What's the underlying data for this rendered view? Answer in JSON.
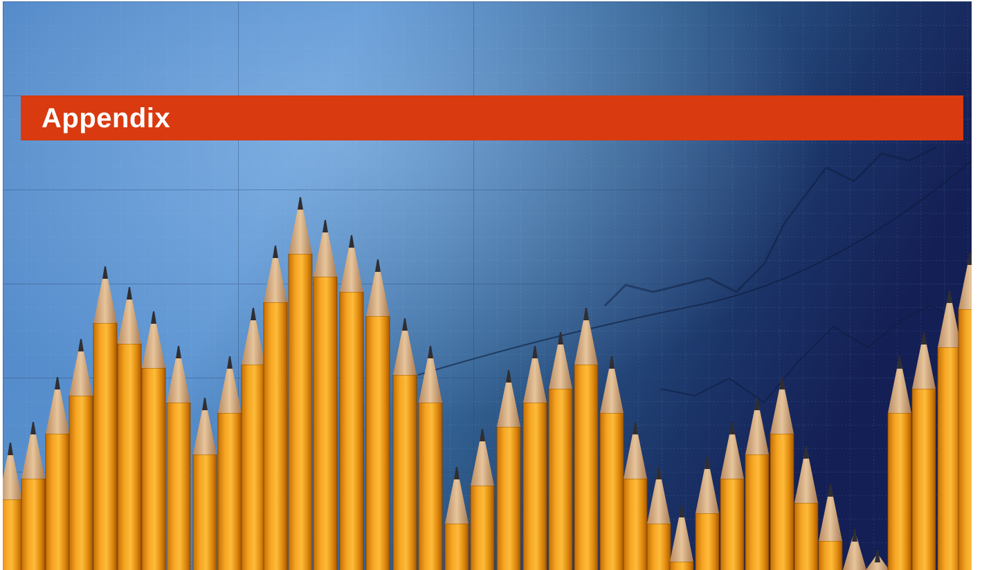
{
  "header": {
    "title": "Appendix"
  }
}
